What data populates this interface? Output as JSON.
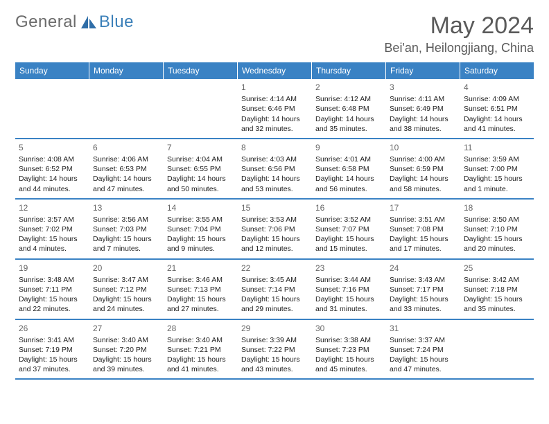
{
  "brand": {
    "word1": "General",
    "word2": "Blue"
  },
  "title": "May 2024",
  "location": "Bei'an, Heilongjiang, China",
  "colors": {
    "header_bg": "#3a82c4",
    "header_text": "#ffffff",
    "week_border": "#3a82c4",
    "title_color": "#5a5a5a",
    "logo_gray": "#6b6b6b",
    "logo_blue": "#3a7fb8",
    "body_text": "#222222",
    "daynum_color": "#666666",
    "background": "#ffffff"
  },
  "typography": {
    "title_fontsize": 34,
    "location_fontsize": 18,
    "logo_fontsize": 24,
    "weekday_fontsize": 12,
    "daynum_fontsize": 12,
    "body_fontsize": 10.5
  },
  "weekdays": [
    "Sunday",
    "Monday",
    "Tuesday",
    "Wednesday",
    "Thursday",
    "Friday",
    "Saturday"
  ],
  "weeks": [
    [
      null,
      null,
      null,
      {
        "n": "1",
        "sunrise": "Sunrise: 4:14 AM",
        "sunset": "Sunset: 6:46 PM",
        "daylight": "Daylight: 14 hours and 32 minutes."
      },
      {
        "n": "2",
        "sunrise": "Sunrise: 4:12 AM",
        "sunset": "Sunset: 6:48 PM",
        "daylight": "Daylight: 14 hours and 35 minutes."
      },
      {
        "n": "3",
        "sunrise": "Sunrise: 4:11 AM",
        "sunset": "Sunset: 6:49 PM",
        "daylight": "Daylight: 14 hours and 38 minutes."
      },
      {
        "n": "4",
        "sunrise": "Sunrise: 4:09 AM",
        "sunset": "Sunset: 6:51 PM",
        "daylight": "Daylight: 14 hours and 41 minutes."
      }
    ],
    [
      {
        "n": "5",
        "sunrise": "Sunrise: 4:08 AM",
        "sunset": "Sunset: 6:52 PM",
        "daylight": "Daylight: 14 hours and 44 minutes."
      },
      {
        "n": "6",
        "sunrise": "Sunrise: 4:06 AM",
        "sunset": "Sunset: 6:53 PM",
        "daylight": "Daylight: 14 hours and 47 minutes."
      },
      {
        "n": "7",
        "sunrise": "Sunrise: 4:04 AM",
        "sunset": "Sunset: 6:55 PM",
        "daylight": "Daylight: 14 hours and 50 minutes."
      },
      {
        "n": "8",
        "sunrise": "Sunrise: 4:03 AM",
        "sunset": "Sunset: 6:56 PM",
        "daylight": "Daylight: 14 hours and 53 minutes."
      },
      {
        "n": "9",
        "sunrise": "Sunrise: 4:01 AM",
        "sunset": "Sunset: 6:58 PM",
        "daylight": "Daylight: 14 hours and 56 minutes."
      },
      {
        "n": "10",
        "sunrise": "Sunrise: 4:00 AM",
        "sunset": "Sunset: 6:59 PM",
        "daylight": "Daylight: 14 hours and 58 minutes."
      },
      {
        "n": "11",
        "sunrise": "Sunrise: 3:59 AM",
        "sunset": "Sunset: 7:00 PM",
        "daylight": "Daylight: 15 hours and 1 minute."
      }
    ],
    [
      {
        "n": "12",
        "sunrise": "Sunrise: 3:57 AM",
        "sunset": "Sunset: 7:02 PM",
        "daylight": "Daylight: 15 hours and 4 minutes."
      },
      {
        "n": "13",
        "sunrise": "Sunrise: 3:56 AM",
        "sunset": "Sunset: 7:03 PM",
        "daylight": "Daylight: 15 hours and 7 minutes."
      },
      {
        "n": "14",
        "sunrise": "Sunrise: 3:55 AM",
        "sunset": "Sunset: 7:04 PM",
        "daylight": "Daylight: 15 hours and 9 minutes."
      },
      {
        "n": "15",
        "sunrise": "Sunrise: 3:53 AM",
        "sunset": "Sunset: 7:06 PM",
        "daylight": "Daylight: 15 hours and 12 minutes."
      },
      {
        "n": "16",
        "sunrise": "Sunrise: 3:52 AM",
        "sunset": "Sunset: 7:07 PM",
        "daylight": "Daylight: 15 hours and 15 minutes."
      },
      {
        "n": "17",
        "sunrise": "Sunrise: 3:51 AM",
        "sunset": "Sunset: 7:08 PM",
        "daylight": "Daylight: 15 hours and 17 minutes."
      },
      {
        "n": "18",
        "sunrise": "Sunrise: 3:50 AM",
        "sunset": "Sunset: 7:10 PM",
        "daylight": "Daylight: 15 hours and 20 minutes."
      }
    ],
    [
      {
        "n": "19",
        "sunrise": "Sunrise: 3:48 AM",
        "sunset": "Sunset: 7:11 PM",
        "daylight": "Daylight: 15 hours and 22 minutes."
      },
      {
        "n": "20",
        "sunrise": "Sunrise: 3:47 AM",
        "sunset": "Sunset: 7:12 PM",
        "daylight": "Daylight: 15 hours and 24 minutes."
      },
      {
        "n": "21",
        "sunrise": "Sunrise: 3:46 AM",
        "sunset": "Sunset: 7:13 PM",
        "daylight": "Daylight: 15 hours and 27 minutes."
      },
      {
        "n": "22",
        "sunrise": "Sunrise: 3:45 AM",
        "sunset": "Sunset: 7:14 PM",
        "daylight": "Daylight: 15 hours and 29 minutes."
      },
      {
        "n": "23",
        "sunrise": "Sunrise: 3:44 AM",
        "sunset": "Sunset: 7:16 PM",
        "daylight": "Daylight: 15 hours and 31 minutes."
      },
      {
        "n": "24",
        "sunrise": "Sunrise: 3:43 AM",
        "sunset": "Sunset: 7:17 PM",
        "daylight": "Daylight: 15 hours and 33 minutes."
      },
      {
        "n": "25",
        "sunrise": "Sunrise: 3:42 AM",
        "sunset": "Sunset: 7:18 PM",
        "daylight": "Daylight: 15 hours and 35 minutes."
      }
    ],
    [
      {
        "n": "26",
        "sunrise": "Sunrise: 3:41 AM",
        "sunset": "Sunset: 7:19 PM",
        "daylight": "Daylight: 15 hours and 37 minutes."
      },
      {
        "n": "27",
        "sunrise": "Sunrise: 3:40 AM",
        "sunset": "Sunset: 7:20 PM",
        "daylight": "Daylight: 15 hours and 39 minutes."
      },
      {
        "n": "28",
        "sunrise": "Sunrise: 3:40 AM",
        "sunset": "Sunset: 7:21 PM",
        "daylight": "Daylight: 15 hours and 41 minutes."
      },
      {
        "n": "29",
        "sunrise": "Sunrise: 3:39 AM",
        "sunset": "Sunset: 7:22 PM",
        "daylight": "Daylight: 15 hours and 43 minutes."
      },
      {
        "n": "30",
        "sunrise": "Sunrise: 3:38 AM",
        "sunset": "Sunset: 7:23 PM",
        "daylight": "Daylight: 15 hours and 45 minutes."
      },
      {
        "n": "31",
        "sunrise": "Sunrise: 3:37 AM",
        "sunset": "Sunset: 7:24 PM",
        "daylight": "Daylight: 15 hours and 47 minutes."
      },
      null
    ]
  ]
}
